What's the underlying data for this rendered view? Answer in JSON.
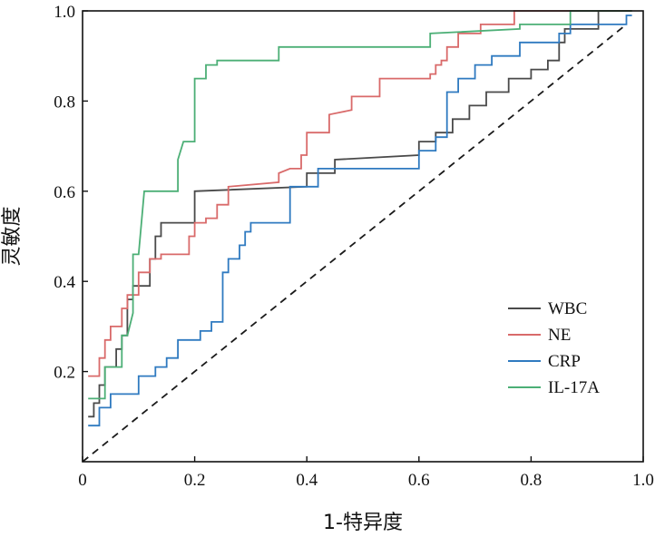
{
  "chart_data": {
    "type": "line",
    "title": "",
    "xlabel": "1-特异度",
    "ylabel": "灵敏度",
    "xlim": [
      0,
      1
    ],
    "ylim": [
      0,
      1
    ],
    "x_ticks": [
      0,
      0.2,
      0.4,
      0.6,
      0.8,
      1.0
    ],
    "x_tick_labels": [
      "0",
      "0.2",
      "0.4",
      "0.6",
      "0.8",
      "1.0"
    ],
    "y_ticks": [
      0.2,
      0.4,
      0.6,
      0.8,
      1.0
    ],
    "y_tick_labels": [
      "0.2",
      "0.4",
      "0.6",
      "0.8",
      "1.0"
    ],
    "grid": false,
    "legend_position": "bottom-right",
    "reference_line": {
      "style": "dashed",
      "color": "#1a1a1a",
      "from": [
        0,
        0
      ],
      "to": [
        0.97,
        0.97
      ]
    },
    "series": [
      {
        "name": "WBC",
        "color": "#4a4a4a",
        "points": [
          [
            0.01,
            0.1
          ],
          [
            0.02,
            0.1
          ],
          [
            0.02,
            0.13
          ],
          [
            0.03,
            0.13
          ],
          [
            0.03,
            0.17
          ],
          [
            0.04,
            0.17
          ],
          [
            0.04,
            0.21
          ],
          [
            0.05,
            0.21
          ],
          [
            0.06,
            0.21
          ],
          [
            0.06,
            0.25
          ],
          [
            0.07,
            0.25
          ],
          [
            0.07,
            0.28
          ],
          [
            0.08,
            0.28
          ],
          [
            0.08,
            0.36
          ],
          [
            0.09,
            0.36
          ],
          [
            0.09,
            0.39
          ],
          [
            0.1,
            0.39
          ],
          [
            0.12,
            0.39
          ],
          [
            0.12,
            0.45
          ],
          [
            0.13,
            0.45
          ],
          [
            0.13,
            0.5
          ],
          [
            0.14,
            0.5
          ],
          [
            0.14,
            0.53
          ],
          [
            0.2,
            0.53
          ],
          [
            0.2,
            0.6
          ],
          [
            0.4,
            0.61
          ],
          [
            0.4,
            0.64
          ],
          [
            0.45,
            0.64
          ],
          [
            0.45,
            0.67
          ],
          [
            0.6,
            0.68
          ],
          [
            0.6,
            0.71
          ],
          [
            0.63,
            0.71
          ],
          [
            0.63,
            0.73
          ],
          [
            0.66,
            0.73
          ],
          [
            0.66,
            0.76
          ],
          [
            0.69,
            0.76
          ],
          [
            0.69,
            0.79
          ],
          [
            0.72,
            0.79
          ],
          [
            0.72,
            0.82
          ],
          [
            0.76,
            0.82
          ],
          [
            0.76,
            0.85
          ],
          [
            0.8,
            0.85
          ],
          [
            0.8,
            0.87
          ],
          [
            0.83,
            0.87
          ],
          [
            0.83,
            0.89
          ],
          [
            0.85,
            0.89
          ],
          [
            0.85,
            0.93
          ],
          [
            0.86,
            0.93
          ],
          [
            0.86,
            0.96
          ],
          [
            0.92,
            0.96
          ],
          [
            0.92,
            1.0
          ],
          [
            0.98,
            1.0
          ]
        ]
      },
      {
        "name": "NE",
        "color": "#d96a6a",
        "points": [
          [
            0.01,
            0.19
          ],
          [
            0.03,
            0.19
          ],
          [
            0.03,
            0.23
          ],
          [
            0.04,
            0.23
          ],
          [
            0.04,
            0.27
          ],
          [
            0.05,
            0.27
          ],
          [
            0.05,
            0.3
          ],
          [
            0.07,
            0.3
          ],
          [
            0.07,
            0.34
          ],
          [
            0.08,
            0.34
          ],
          [
            0.08,
            0.37
          ],
          [
            0.1,
            0.37
          ],
          [
            0.1,
            0.42
          ],
          [
            0.12,
            0.42
          ],
          [
            0.12,
            0.45
          ],
          [
            0.14,
            0.45
          ],
          [
            0.14,
            0.46
          ],
          [
            0.19,
            0.46
          ],
          [
            0.19,
            0.5
          ],
          [
            0.2,
            0.5
          ],
          [
            0.2,
            0.53
          ],
          [
            0.22,
            0.53
          ],
          [
            0.22,
            0.54
          ],
          [
            0.24,
            0.54
          ],
          [
            0.24,
            0.57
          ],
          [
            0.26,
            0.57
          ],
          [
            0.26,
            0.61
          ],
          [
            0.35,
            0.62
          ],
          [
            0.35,
            0.64
          ],
          [
            0.37,
            0.65
          ],
          [
            0.39,
            0.65
          ],
          [
            0.39,
            0.68
          ],
          [
            0.4,
            0.68
          ],
          [
            0.4,
            0.73
          ],
          [
            0.44,
            0.73
          ],
          [
            0.44,
            0.77
          ],
          [
            0.48,
            0.78
          ],
          [
            0.48,
            0.81
          ],
          [
            0.53,
            0.81
          ],
          [
            0.53,
            0.85
          ],
          [
            0.62,
            0.85
          ],
          [
            0.62,
            0.86
          ],
          [
            0.63,
            0.86
          ],
          [
            0.63,
            0.88
          ],
          [
            0.64,
            0.88
          ],
          [
            0.64,
            0.89
          ],
          [
            0.65,
            0.89
          ],
          [
            0.65,
            0.92
          ],
          [
            0.67,
            0.92
          ],
          [
            0.67,
            0.95
          ],
          [
            0.71,
            0.95
          ],
          [
            0.71,
            0.97
          ],
          [
            0.77,
            0.97
          ],
          [
            0.77,
            1.0
          ],
          [
            0.98,
            1.0
          ]
        ]
      },
      {
        "name": "CRP",
        "color": "#2f7ac0",
        "points": [
          [
            0.01,
            0.08
          ],
          [
            0.03,
            0.08
          ],
          [
            0.03,
            0.12
          ],
          [
            0.05,
            0.12
          ],
          [
            0.05,
            0.15
          ],
          [
            0.1,
            0.15
          ],
          [
            0.1,
            0.19
          ],
          [
            0.13,
            0.19
          ],
          [
            0.13,
            0.21
          ],
          [
            0.15,
            0.21
          ],
          [
            0.15,
            0.23
          ],
          [
            0.17,
            0.23
          ],
          [
            0.17,
            0.27
          ],
          [
            0.21,
            0.27
          ],
          [
            0.21,
            0.29
          ],
          [
            0.23,
            0.29
          ],
          [
            0.23,
            0.31
          ],
          [
            0.25,
            0.31
          ],
          [
            0.25,
            0.38
          ],
          [
            0.25,
            0.42
          ],
          [
            0.26,
            0.42
          ],
          [
            0.26,
            0.45
          ],
          [
            0.28,
            0.45
          ],
          [
            0.28,
            0.48
          ],
          [
            0.29,
            0.48
          ],
          [
            0.29,
            0.51
          ],
          [
            0.3,
            0.51
          ],
          [
            0.3,
            0.53
          ],
          [
            0.37,
            0.53
          ],
          [
            0.37,
            0.61
          ],
          [
            0.42,
            0.61
          ],
          [
            0.42,
            0.65
          ],
          [
            0.6,
            0.65
          ],
          [
            0.6,
            0.69
          ],
          [
            0.63,
            0.69
          ],
          [
            0.63,
            0.72
          ],
          [
            0.65,
            0.72
          ],
          [
            0.65,
            0.77
          ],
          [
            0.65,
            0.82
          ],
          [
            0.67,
            0.82
          ],
          [
            0.67,
            0.85
          ],
          [
            0.7,
            0.85
          ],
          [
            0.7,
            0.88
          ],
          [
            0.73,
            0.88
          ],
          [
            0.73,
            0.9
          ],
          [
            0.78,
            0.9
          ],
          [
            0.78,
            0.93
          ],
          [
            0.85,
            0.93
          ],
          [
            0.85,
            0.95
          ],
          [
            0.87,
            0.95
          ],
          [
            0.87,
            0.97
          ],
          [
            0.97,
            0.97
          ],
          [
            0.97,
            0.99
          ],
          [
            0.98,
            0.99
          ]
        ]
      },
      {
        "name": "IL-17A",
        "color": "#4caf76",
        "points": [
          [
            0.01,
            0.14
          ],
          [
            0.04,
            0.14
          ],
          [
            0.04,
            0.21
          ],
          [
            0.07,
            0.21
          ],
          [
            0.07,
            0.28
          ],
          [
            0.08,
            0.28
          ],
          [
            0.09,
            0.33
          ],
          [
            0.09,
            0.46
          ],
          [
            0.1,
            0.46
          ],
          [
            0.11,
            0.6
          ],
          [
            0.17,
            0.6
          ],
          [
            0.17,
            0.67
          ],
          [
            0.18,
            0.71
          ],
          [
            0.2,
            0.71
          ],
          [
            0.2,
            0.85
          ],
          [
            0.22,
            0.85
          ],
          [
            0.22,
            0.88
          ],
          [
            0.24,
            0.88
          ],
          [
            0.24,
            0.89
          ],
          [
            0.35,
            0.89
          ],
          [
            0.35,
            0.92
          ],
          [
            0.62,
            0.92
          ],
          [
            0.62,
            0.95
          ],
          [
            0.78,
            0.96
          ],
          [
            0.78,
            0.97
          ],
          [
            0.87,
            0.97
          ],
          [
            0.87,
            1.0
          ],
          [
            0.98,
            1.0
          ]
        ]
      }
    ]
  }
}
